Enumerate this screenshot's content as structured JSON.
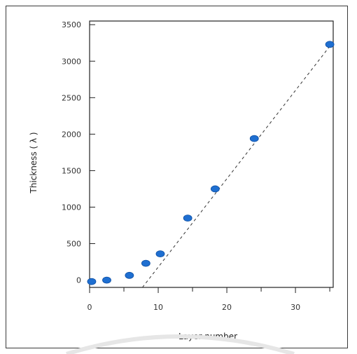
{
  "chart_data": {
    "type": "scatter",
    "title": "",
    "xlabel": "Layer number",
    "ylabel": "Thickness ( λ )",
    "xlim": [
      0,
      35.5
    ],
    "ylim": [
      -100,
      3550
    ],
    "xticks": [
      0,
      10,
      20,
      30
    ],
    "xtick_labels": [
      "0",
      "10",
      "20",
      "30"
    ],
    "yticks": [
      0,
      500,
      1000,
      1500,
      2000,
      2500,
      3000,
      3500
    ],
    "ytick_labels": [
      "0",
      "500",
      "1000",
      "1500",
      "2000",
      "2500",
      "3000",
      "3500"
    ],
    "grid": false,
    "legend": "none",
    "marker_color": "#1f6fd1",
    "series": [
      {
        "x": [
          0.3,
          2.5,
          5.8,
          8.2,
          10.3,
          14.3,
          18.3,
          24.0,
          35.0
        ],
        "y": [
          -20,
          0,
          65,
          230,
          360,
          850,
          1250,
          1940,
          3230
        ]
      }
    ],
    "fit_line": {
      "x": [
        7.7,
        35.3
      ],
      "y": [
        -100,
        3240
      ],
      "style": "dashed"
    }
  }
}
